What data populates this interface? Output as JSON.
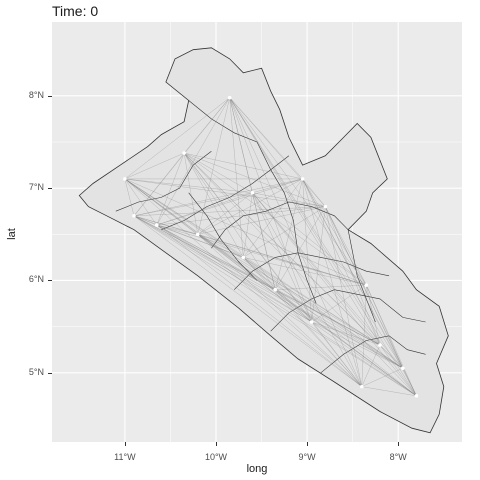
{
  "title": "Time: 0",
  "xlabel": "long",
  "ylabel": "lat",
  "colors": {
    "panel_bg": "#ebebeb",
    "grid": "#ffffff",
    "land": "#e3e3e3",
    "border": "#333333",
    "link": "#7a7a7a",
    "node": "#ffffff"
  },
  "chart_data": {
    "type": "map",
    "title": "Time: 0",
    "xlabel": "long",
    "ylabel": "lat",
    "xlim": [
      -11.8,
      -7.3
    ],
    "ylim": [
      4.25,
      8.8
    ],
    "grid": true,
    "x_ticks": [
      {
        "value": -11,
        "label": "11°W"
      },
      {
        "value": -10,
        "label": "10°W"
      },
      {
        "value": -9,
        "label": "9°W"
      },
      {
        "value": -8,
        "label": "8°W"
      }
    ],
    "y_ticks": [
      {
        "value": 5,
        "label": "5°N"
      },
      {
        "value": 6,
        "label": "6°N"
      },
      {
        "value": 7,
        "label": "7°N"
      },
      {
        "value": 8,
        "label": "8°N"
      }
    ],
    "outline": [
      [
        -11.5,
        6.92
      ],
      [
        -11.35,
        7.05
      ],
      [
        -11.05,
        7.25
      ],
      [
        -10.75,
        7.45
      ],
      [
        -10.6,
        7.58
      ],
      [
        -10.35,
        7.72
      ],
      [
        -10.3,
        7.95
      ],
      [
        -10.55,
        8.15
      ],
      [
        -10.45,
        8.4
      ],
      [
        -10.25,
        8.5
      ],
      [
        -10.05,
        8.52
      ],
      [
        -9.85,
        8.4
      ],
      [
        -9.7,
        8.25
      ],
      [
        -9.5,
        8.3
      ],
      [
        -9.4,
        8.05
      ],
      [
        -9.3,
        7.85
      ],
      [
        -9.2,
        7.55
      ],
      [
        -9.05,
        7.25
      ],
      [
        -8.8,
        7.35
      ],
      [
        -8.6,
        7.55
      ],
      [
        -8.45,
        7.7
      ],
      [
        -8.3,
        7.55
      ],
      [
        -8.22,
        7.35
      ],
      [
        -8.12,
        7.1
      ],
      [
        -8.28,
        6.95
      ],
      [
        -8.35,
        6.75
      ],
      [
        -8.55,
        6.55
      ],
      [
        -8.3,
        6.4
      ],
      [
        -7.95,
        6.1
      ],
      [
        -7.8,
        5.9
      ],
      [
        -7.55,
        5.72
      ],
      [
        -7.45,
        5.4
      ],
      [
        -7.58,
        5.1
      ],
      [
        -7.5,
        4.85
      ],
      [
        -7.55,
        4.55
      ],
      [
        -7.65,
        4.35
      ],
      [
        -7.85,
        4.4
      ],
      [
        -8.2,
        4.58
      ],
      [
        -8.7,
        4.9
      ],
      [
        -9.1,
        5.15
      ],
      [
        -9.4,
        5.4
      ],
      [
        -9.75,
        5.7
      ],
      [
        -10.2,
        6.05
      ],
      [
        -10.55,
        6.3
      ],
      [
        -10.9,
        6.55
      ],
      [
        -11.2,
        6.7
      ],
      [
        -11.4,
        6.8
      ]
    ],
    "internal_borders": [
      [
        [
          -11.1,
          6.75
        ],
        [
          -10.85,
          6.85
        ],
        [
          -10.6,
          6.9
        ],
        [
          -10.4,
          7.0
        ],
        [
          -10.25,
          7.25
        ],
        [
          -10.05,
          7.4
        ]
      ],
      [
        [
          -10.3,
          7.95
        ],
        [
          -10.05,
          7.75
        ],
        [
          -9.8,
          7.6
        ],
        [
          -9.55,
          7.5
        ],
        [
          -9.4,
          7.2
        ]
      ],
      [
        [
          -10.6,
          6.55
        ],
        [
          -10.35,
          6.65
        ],
        [
          -10.1,
          6.8
        ],
        [
          -9.85,
          6.9
        ],
        [
          -9.6,
          7.05
        ],
        [
          -9.4,
          7.2
        ],
        [
          -9.2,
          7.35
        ]
      ],
      [
        [
          -10.05,
          6.35
        ],
        [
          -9.9,
          6.55
        ],
        [
          -9.7,
          6.7
        ],
        [
          -9.45,
          6.75
        ],
        [
          -9.2,
          6.85
        ],
        [
          -8.95,
          6.8
        ],
        [
          -8.7,
          6.7
        ],
        [
          -8.55,
          6.55
        ]
      ],
      [
        [
          -9.8,
          5.9
        ],
        [
          -9.6,
          6.1
        ],
        [
          -9.35,
          6.25
        ],
        [
          -9.1,
          6.3
        ],
        [
          -8.85,
          6.25
        ],
        [
          -8.6,
          6.2
        ],
        [
          -8.35,
          6.1
        ],
        [
          -8.1,
          6.05
        ]
      ],
      [
        [
          -9.4,
          5.45
        ],
        [
          -9.2,
          5.65
        ],
        [
          -8.95,
          5.8
        ],
        [
          -8.7,
          5.9
        ],
        [
          -8.45,
          5.85
        ],
        [
          -8.2,
          5.8
        ],
        [
          -7.95,
          5.6
        ],
        [
          -7.7,
          5.55
        ]
      ],
      [
        [
          -8.85,
          5.0
        ],
        [
          -8.6,
          5.2
        ],
        [
          -8.35,
          5.35
        ],
        [
          -8.1,
          5.4
        ],
        [
          -7.9,
          5.25
        ],
        [
          -7.7,
          5.2
        ]
      ],
      [
        [
          -10.3,
          6.95
        ],
        [
          -10.1,
          6.7
        ],
        [
          -9.95,
          6.45
        ],
        [
          -9.75,
          6.2
        ],
        [
          -9.55,
          6.0
        ]
      ],
      [
        [
          -9.4,
          7.2
        ],
        [
          -9.25,
          6.95
        ],
        [
          -9.15,
          6.65
        ],
        [
          -9.1,
          6.3
        ],
        [
          -9.0,
          6.0
        ],
        [
          -8.9,
          5.75
        ]
      ],
      [
        [
          -8.55,
          6.55
        ],
        [
          -8.5,
          6.3
        ],
        [
          -8.45,
          6.05
        ],
        [
          -8.35,
          5.8
        ],
        [
          -8.25,
          5.55
        ]
      ]
    ],
    "nodes": [
      {
        "x": -9.85,
        "y": 7.98
      },
      {
        "x": -10.35,
        "y": 7.38
      },
      {
        "x": -11.0,
        "y": 7.1
      },
      {
        "x": -9.6,
        "y": 6.95
      },
      {
        "x": -8.8,
        "y": 6.8
      },
      {
        "x": -10.9,
        "y": 6.7
      },
      {
        "x": -10.2,
        "y": 6.5
      },
      {
        "x": -9.7,
        "y": 6.25
      },
      {
        "x": -9.35,
        "y": 5.9
      },
      {
        "x": -8.35,
        "y": 5.95
      },
      {
        "x": -8.95,
        "y": 5.55
      },
      {
        "x": -8.2,
        "y": 5.3
      },
      {
        "x": -7.95,
        "y": 5.05
      },
      {
        "x": -7.8,
        "y": 4.75
      },
      {
        "x": -8.4,
        "y": 4.85
      },
      {
        "x": -10.65,
        "y": 6.6
      },
      {
        "x": -9.05,
        "y": 7.1
      }
    ]
  }
}
